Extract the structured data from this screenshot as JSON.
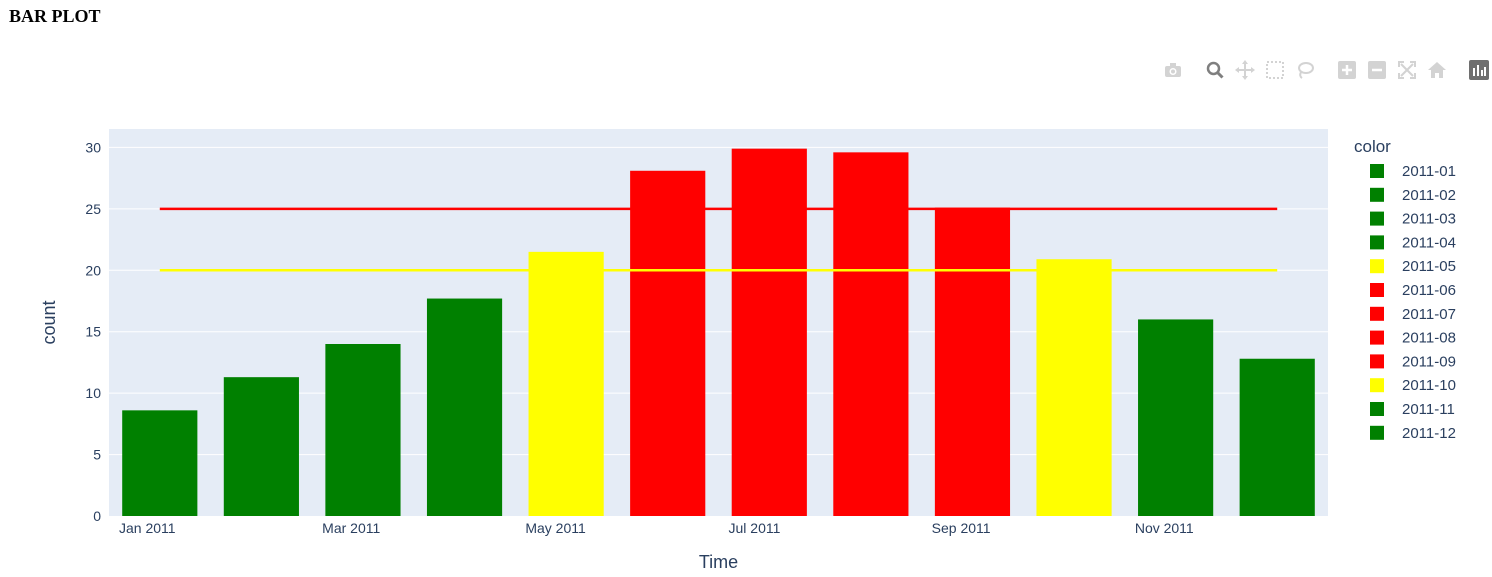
{
  "page": {
    "title": "BAR PLOT"
  },
  "modebar": {
    "buttons": [
      "camera-icon",
      "zoom-icon",
      "pan-icon",
      "box-select-icon",
      "lasso-icon",
      "zoom-in-icon",
      "zoom-out-icon",
      "autoscale-icon",
      "reset-axes-icon",
      "plotly-logo-icon"
    ]
  },
  "chart_data": {
    "type": "bar",
    "title": "",
    "xlabel": "Time",
    "ylabel": "count",
    "categories": [
      "2011-01",
      "2011-02",
      "2011-03",
      "2011-04",
      "2011-05",
      "2011-06",
      "2011-07",
      "2011-08",
      "2011-09",
      "2011-10",
      "2011-11",
      "2011-12"
    ],
    "values": [
      8.6,
      11.3,
      14.0,
      17.7,
      21.5,
      28.1,
      29.9,
      29.6,
      25.1,
      20.9,
      16.0,
      12.8
    ],
    "bar_colors": [
      "#008000",
      "#008000",
      "#008000",
      "#008000",
      "#ffff00",
      "#ff0000",
      "#ff0000",
      "#ff0000",
      "#ff0000",
      "#ffff00",
      "#008000",
      "#008000"
    ],
    "ylim": [
      0,
      31.5
    ],
    "yticks": [
      0,
      5,
      10,
      15,
      20,
      25,
      30
    ],
    "xticks": [
      {
        "index": 0,
        "label": "Jan 2011"
      },
      {
        "index": 2,
        "label": "Mar 2011"
      },
      {
        "index": 4,
        "label": "May 2011"
      },
      {
        "index": 6,
        "label": "Jul 2011"
      },
      {
        "index": 8,
        "label": "Sep 2011"
      },
      {
        "index": 10,
        "label": "Nov 2011"
      }
    ],
    "reference_lines": [
      {
        "y": 25,
        "color": "#ff0000"
      },
      {
        "y": 20,
        "color": "#ffff00"
      }
    ],
    "legend": {
      "title": "color",
      "position": "right",
      "items": [
        {
          "label": "2011-01",
          "color": "#008000"
        },
        {
          "label": "2011-02",
          "color": "#008000"
        },
        {
          "label": "2011-03",
          "color": "#008000"
        },
        {
          "label": "2011-04",
          "color": "#008000"
        },
        {
          "label": "2011-05",
          "color": "#ffff00"
        },
        {
          "label": "2011-06",
          "color": "#ff0000"
        },
        {
          "label": "2011-07",
          "color": "#ff0000"
        },
        {
          "label": "2011-08",
          "color": "#ff0000"
        },
        {
          "label": "2011-09",
          "color": "#ff0000"
        },
        {
          "label": "2011-10",
          "color": "#ffff00"
        },
        {
          "label": "2011-11",
          "color": "#008000"
        },
        {
          "label": "2011-12",
          "color": "#008000"
        }
      ]
    },
    "plot_bg": "#e5ecf6",
    "grid": true
  }
}
